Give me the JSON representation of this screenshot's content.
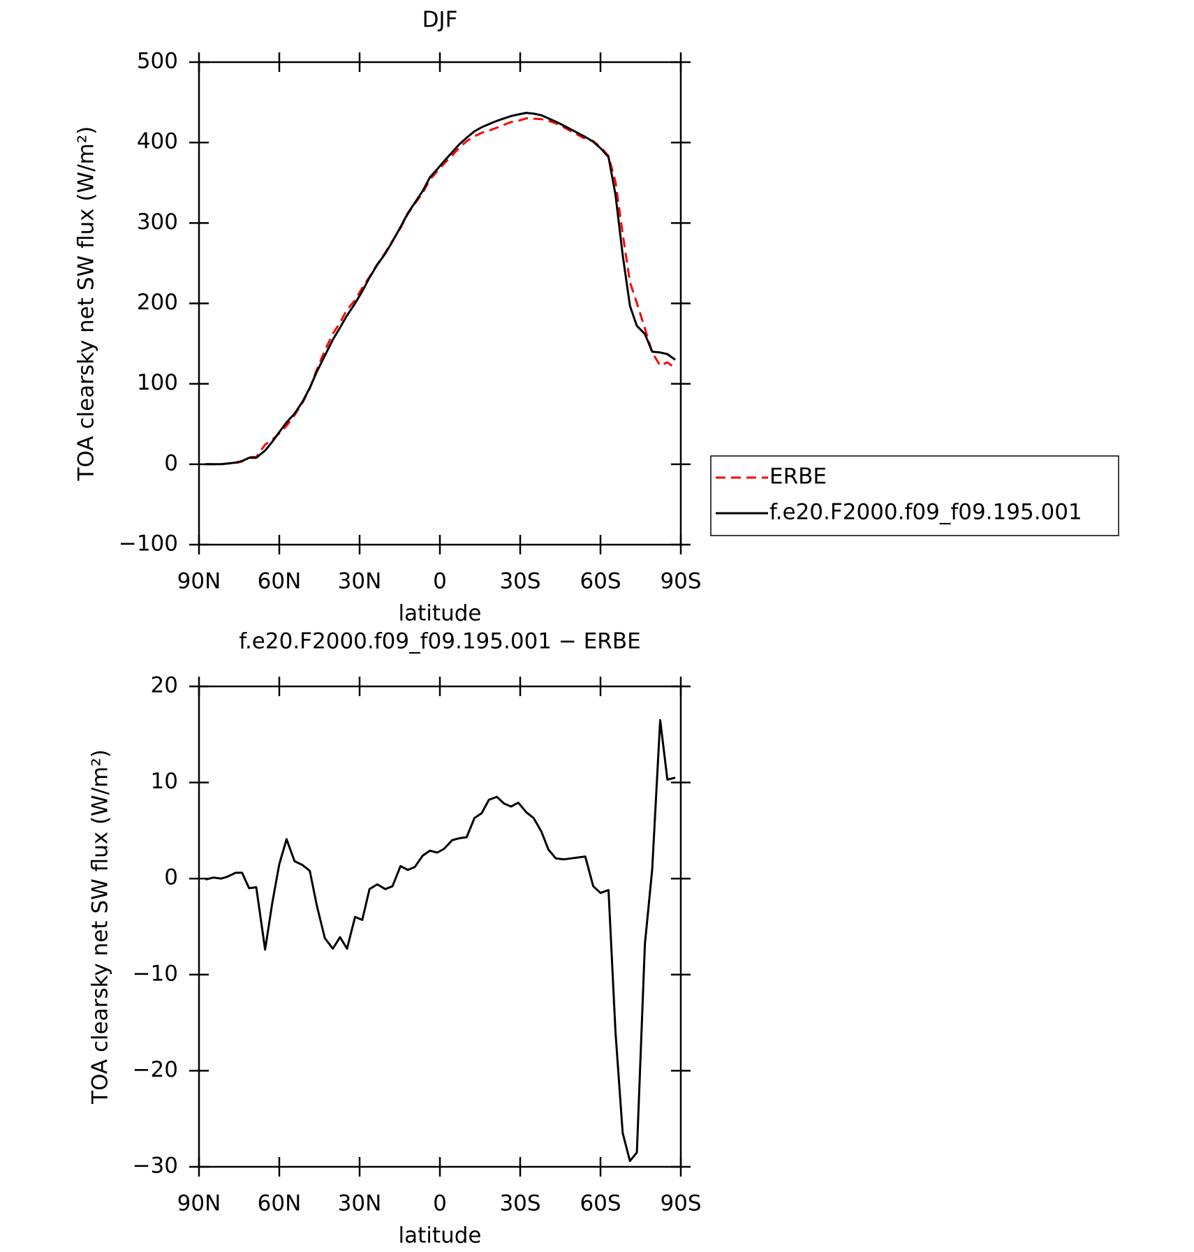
{
  "chart_data": [
    {
      "type": "line",
      "title": "DJF",
      "xlabel": "latitude",
      "ylabel": "TOA clearsky net SW flux (W/m²)",
      "x": [
        87.6,
        84.6,
        81.7,
        79.3,
        76.3,
        73.9,
        71.3,
        68.6,
        65.3,
        62.6,
        60,
        57.3,
        54.3,
        51.3,
        48.6,
        46,
        43,
        40,
        37.3,
        34.7,
        31.7,
        29,
        26.3,
        23.4,
        20.4,
        17.7,
        14.7,
        12,
        9.4,
        6.4,
        3.7,
        1,
        -1.6,
        -4.6,
        -7.3,
        -10,
        -12.9,
        -15.6,
        -18.3,
        -21.3,
        -24,
        -26.6,
        -29.3,
        -32.3,
        -35,
        -37.9,
        -40.6,
        -43.3,
        -46.3,
        -54.3,
        -57.3,
        -60,
        -63,
        -65.6,
        -68.3,
        -71,
        -73.6,
        -76.6,
        -79.3,
        -82.3,
        -85,
        -87.9
      ],
      "series": [
        {
          "name": "ERBE",
          "color": "#ff0000",
          "dash": true,
          "values": [
            0.1,
            -0.1,
            0,
            0.8,
            1.4,
            3.4,
            9,
            8.9,
            24.4,
            30.5,
            38.5,
            47.9,
            61.2,
            76.6,
            94.2,
            117.8,
            141.2,
            162.3,
            176.1,
            192.3,
            204,
            219.3,
            233.1,
            248.6,
            263.1,
            277.8,
            293.7,
            311.1,
            323.8,
            337.6,
            354.1,
            364.3,
            373.9,
            384,
            393.8,
            401.7,
            407.7,
            412.2,
            414.8,
            418.5,
            422.2,
            425.5,
            427.1,
            430.1,
            429.7,
            429.1,
            427,
            423.9,
            419,
            404.7,
            401.8,
            394.5,
            383.2,
            351,
            286.5,
            226.4,
            200.5,
            168.8,
            139.1,
            122.5,
            126.7,
            119.5
          ]
        },
        {
          "name": "f.e20.F2000.f09_f09.195.001",
          "color": "#000000",
          "dash": false,
          "values": [
            0,
            0,
            0,
            1,
            2,
            4,
            8,
            8,
            17,
            28,
            40,
            52,
            63,
            78,
            95,
            115,
            135,
            155,
            170,
            185,
            200,
            215,
            232,
            248,
            262,
            277,
            295,
            312,
            325,
            340,
            357,
            367,
            377,
            388,
            398,
            406,
            414,
            419,
            423,
            427,
            430,
            433,
            435,
            437,
            436,
            434,
            430,
            426,
            421,
            407,
            401,
            393,
            382,
            335,
            260,
            197,
            172,
            162,
            140,
            139,
            137,
            130
          ]
        }
      ],
      "xlim": [
        90,
        -90
      ],
      "xticks": [
        {
          "value": 90,
          "label": "90N"
        },
        {
          "value": 60,
          "label": "60N"
        },
        {
          "value": 30,
          "label": "30N"
        },
        0,
        {
          "value": -30,
          "label": "30S"
        },
        {
          "value": -60,
          "label": "60S"
        },
        {
          "value": -90,
          "label": "90S"
        }
      ],
      "ylim": [
        -100,
        500
      ],
      "yticks": [
        {
          "value": -100,
          "label": "−100"
        },
        0,
        100,
        200,
        300,
        400,
        500
      ],
      "legend": "right"
    },
    {
      "type": "line",
      "title": "f.e20.F2000.f09_f09.195.001 − ERBE",
      "xlabel": "latitude",
      "ylabel": "TOA clearsky net SW flux (W/m²)",
      "x": [
        87.6,
        84.6,
        81.7,
        79.3,
        76.3,
        73.9,
        71.3,
        68.6,
        65.3,
        62.6,
        60,
        57.3,
        54.3,
        51.3,
        48.6,
        46,
        43,
        40,
        37.3,
        34.7,
        31.7,
        29,
        26.3,
        23.4,
        20.4,
        17.7,
        14.7,
        12,
        9.4,
        6.4,
        3.7,
        1,
        -1.6,
        -4.6,
        -7.3,
        -10,
        -12.9,
        -15.6,
        -18.3,
        -21.3,
        -24,
        -26.6,
        -29.3,
        -32.3,
        -35,
        -37.9,
        -40.6,
        -43.3,
        -46.3,
        -54.3,
        -57.3,
        -60,
        -63,
        -65.6,
        -68.3,
        -71,
        -73.6,
        -76.6,
        -79.3,
        -82.3,
        -85,
        -87.9
      ],
      "series": [
        {
          "color": "#000000",
          "dash": false,
          "values": [
            -0.1,
            0.1,
            0,
            0.2,
            0.6,
            0.6,
            -1,
            -0.9,
            -7.4,
            -2.5,
            1.5,
            4.1,
            1.8,
            1.4,
            0.8,
            -2.8,
            -6.2,
            -7.3,
            -6.1,
            -7.3,
            -4,
            -4.3,
            -1.1,
            -0.6,
            -1.1,
            -0.8,
            1.3,
            0.9,
            1.2,
            2.4,
            2.9,
            2.7,
            3.1,
            4,
            4.2,
            4.3,
            6.3,
            6.8,
            8.2,
            8.5,
            7.8,
            7.5,
            7.9,
            6.9,
            6.3,
            4.9,
            3,
            2.1,
            2,
            2.3,
            -0.8,
            -1.5,
            -1.2,
            -16,
            -26.5,
            -29.4,
            -28.5,
            -6.8,
            0.9,
            16.5,
            10.3,
            10.5
          ]
        }
      ],
      "xlim": [
        90,
        -90
      ],
      "xticks": [
        {
          "value": 90,
          "label": "90N"
        },
        {
          "value": 60,
          "label": "60N"
        },
        {
          "value": 30,
          "label": "30N"
        },
        0,
        {
          "value": -30,
          "label": "30S"
        },
        {
          "value": -60,
          "label": "60S"
        },
        {
          "value": -90,
          "label": "90S"
        }
      ],
      "ylim": [
        -30,
        20
      ],
      "yticks": [
        {
          "value": -30,
          "label": "−30"
        },
        {
          "value": -20,
          "label": "−20"
        },
        {
          "value": -10,
          "label": "−10"
        },
        0,
        10,
        20
      ]
    }
  ]
}
